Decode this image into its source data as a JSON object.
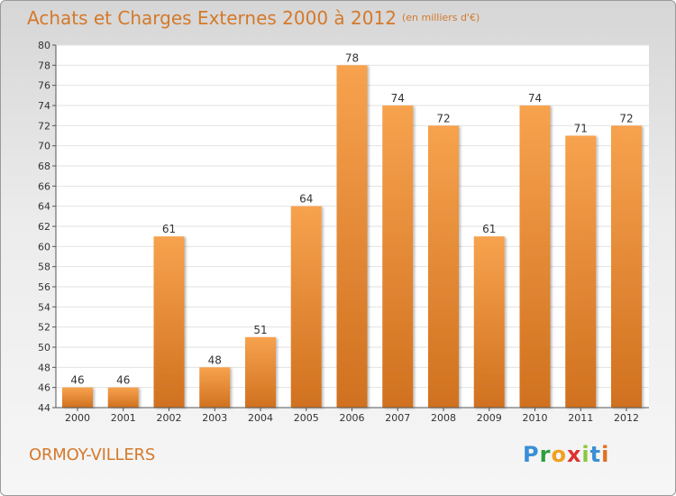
{
  "header": {
    "title": "Achats et Charges Externes 2000 à 2012",
    "unit": "(en milliers d'€)"
  },
  "footer": {
    "commune": "ORMOY-VILLERS",
    "logo_letters": [
      "P",
      "r",
      "o",
      "x",
      "i",
      "t",
      "i"
    ],
    "logo_colors": [
      "#3a8fd6",
      "#2e9e3e",
      "#f0a020",
      "#e03030",
      "#8cc63f",
      "#3a8fd6",
      "#e07020"
    ]
  },
  "colors": {
    "bar_top": "#f7a24e",
    "bar_bottom": "#d0711f",
    "text_accent": "#d4792a"
  },
  "chart_data": {
    "type": "bar",
    "categories": [
      "2000",
      "2001",
      "2002",
      "2003",
      "2004",
      "2005",
      "2006",
      "2007",
      "2008",
      "2009",
      "2010",
      "2011",
      "2012"
    ],
    "values": [
      46,
      46,
      61,
      48,
      51,
      64,
      78,
      74,
      72,
      61,
      74,
      71,
      72
    ],
    "ylim": [
      44,
      80
    ],
    "yticks": [
      44,
      46,
      48,
      50,
      52,
      54,
      56,
      58,
      60,
      62,
      64,
      66,
      68,
      70,
      72,
      74,
      76,
      78,
      80
    ],
    "grid": true,
    "data_labels": true
  }
}
